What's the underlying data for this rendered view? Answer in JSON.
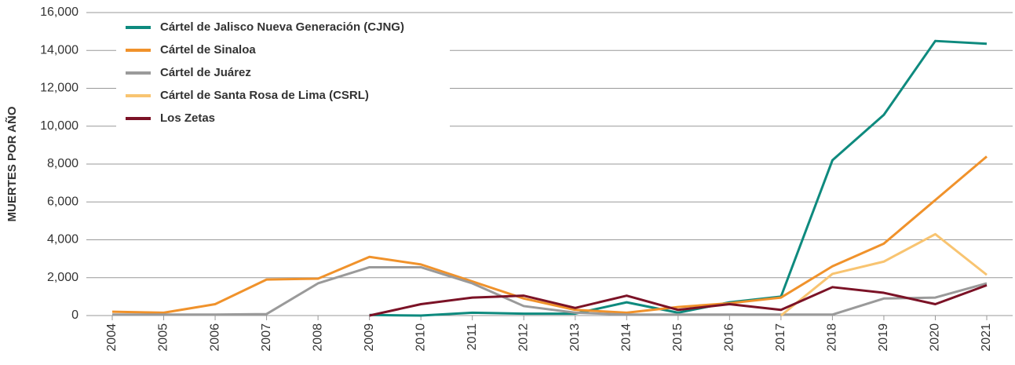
{
  "chart_data": {
    "type": "line",
    "ylabel": "MUERTES POR AÑO",
    "categories": [
      "2004",
      "2005",
      "2006",
      "2007",
      "2008",
      "2009",
      "2010",
      "2011",
      "2012",
      "2013",
      "2014",
      "2015",
      "2016",
      "2017",
      "2018",
      "2019",
      "2020",
      "2021"
    ],
    "series": [
      {
        "name": "Cártel de Jalisco Nueva Generación (CJNG)",
        "color": "#0e8a7e",
        "values": [
          null,
          null,
          null,
          null,
          null,
          30,
          0,
          150,
          100,
          100,
          700,
          150,
          700,
          1000,
          8200,
          10600,
          14500,
          14350
        ]
      },
      {
        "name": "Cártel de Sinaloa",
        "color": "#f0922b",
        "values": [
          200,
          150,
          600,
          1900,
          1950,
          3100,
          2700,
          1800,
          900,
          300,
          150,
          450,
          650,
          950,
          2600,
          3800,
          6100,
          8400
        ]
      },
      {
        "name": "Cártel de Juárez",
        "color": "#9a9a9a",
        "values": [
          50,
          50,
          50,
          80,
          1700,
          2550,
          2550,
          1700,
          500,
          150,
          50,
          50,
          50,
          50,
          50,
          900,
          950,
          1700
        ]
      },
      {
        "name": "Cártel de Santa Rosa de Lima (CSRL)",
        "color": "#f8c471",
        "values": [
          null,
          null,
          null,
          null,
          null,
          null,
          null,
          null,
          null,
          null,
          null,
          null,
          null,
          0,
          2200,
          2850,
          4300,
          2150
        ]
      },
      {
        "name": "Los Zetas",
        "color": "#7b1226",
        "values": [
          null,
          null,
          null,
          null,
          null,
          0,
          600,
          950,
          1050,
          400,
          1050,
          300,
          600,
          300,
          1500,
          1200,
          600,
          1600
        ]
      }
    ],
    "ylim": [
      0,
      16000
    ],
    "yticks": [
      0,
      {
        "value": 2000,
        "label": "2,000"
      },
      {
        "value": 4000,
        "label": "4,000"
      },
      {
        "value": 6000,
        "label": "6,000"
      },
      {
        "value": 8000,
        "label": "8,000"
      },
      {
        "value": 10000,
        "label": "10,000"
      },
      {
        "value": 12000,
        "label": "12,000"
      },
      {
        "value": 14000,
        "label": "14,000"
      },
      {
        "value": 16000,
        "label": "16,000"
      }
    ],
    "grid": true,
    "legend": "upper left"
  }
}
